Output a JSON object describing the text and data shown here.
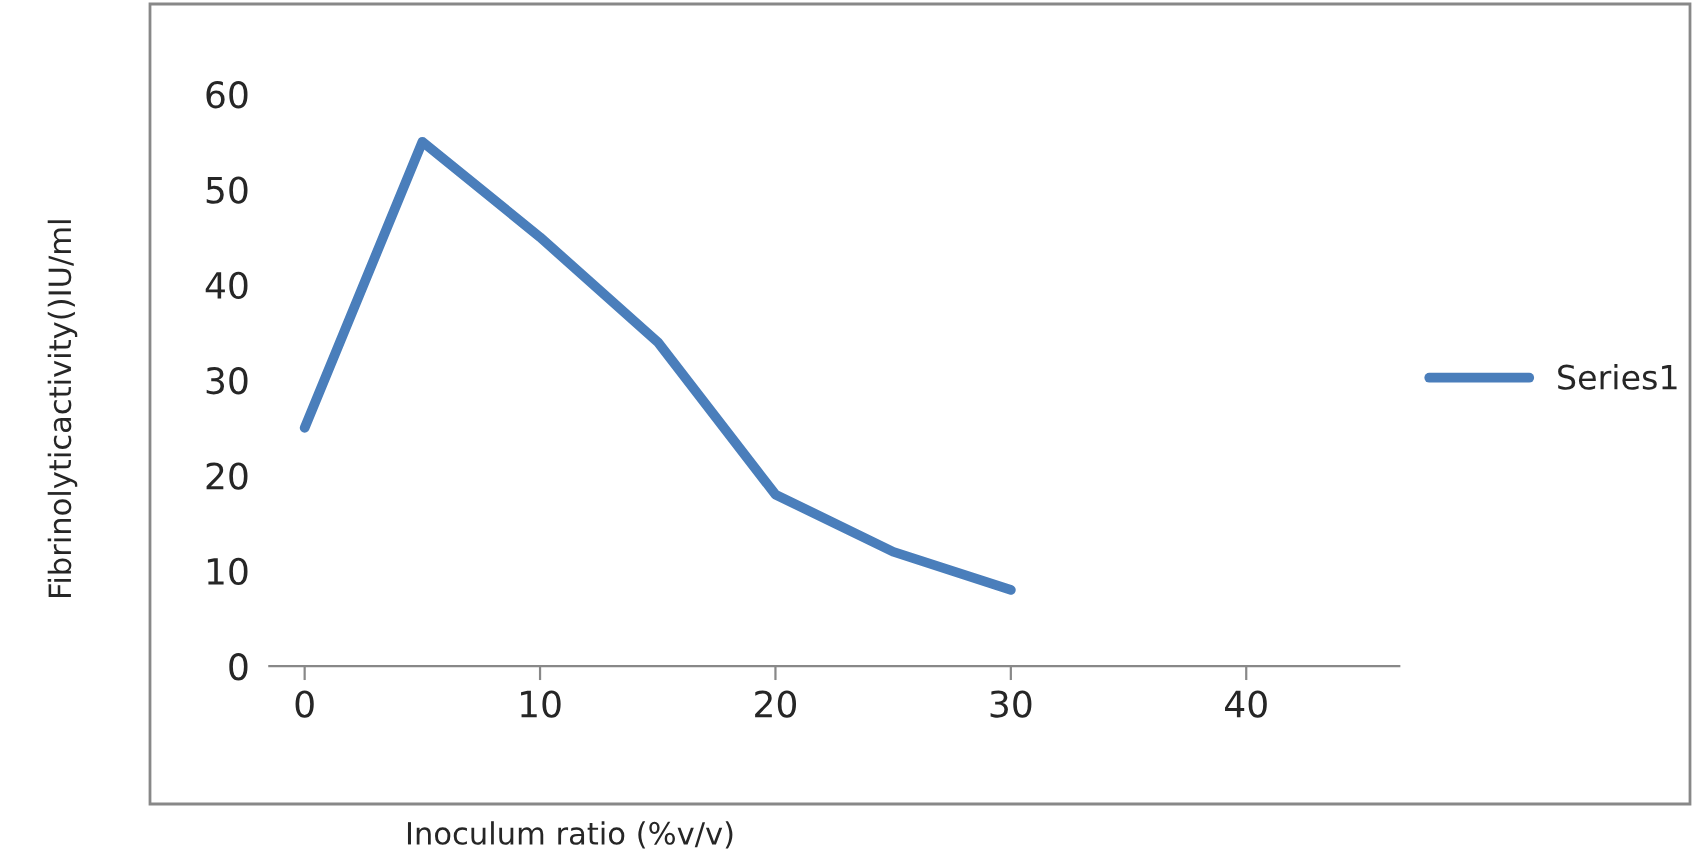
{
  "chart_data": {
    "type": "line",
    "xlabel": "Inoculum ratio (%v/v)",
    "ylabel": "Fibrinolyticactivity()IU/ml",
    "x": [
      0,
      5,
      10,
      15,
      20,
      25,
      30
    ],
    "series": [
      {
        "name": "Series1",
        "color": "#4a7ebb",
        "values": [
          25,
          55,
          45,
          34,
          18,
          12,
          8
        ]
      }
    ],
    "xlim": [
      -1.5,
      46.5
    ],
    "ylim": [
      0,
      60
    ],
    "xticks": [
      0,
      10,
      20,
      30,
      40
    ],
    "yticks": [
      0,
      10,
      20,
      30,
      40,
      50,
      60
    ],
    "legend": "right",
    "grid": false,
    "marker": "none",
    "line_style": "solid"
  }
}
